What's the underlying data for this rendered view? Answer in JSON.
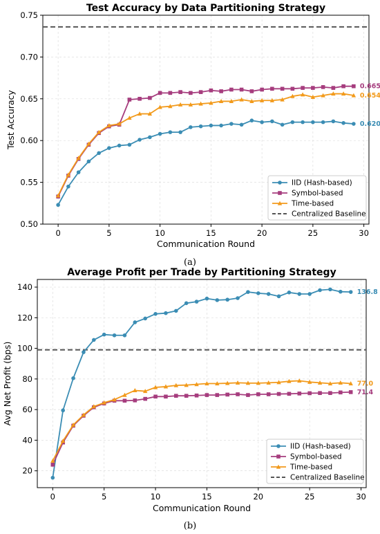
{
  "colors": {
    "iid": "#3b8db4",
    "symbol": "#a63d7e",
    "time": "#f29a1b",
    "baseline": "#555555"
  },
  "chart_data": [
    {
      "type": "line",
      "caption": "(a)",
      "title": "Test Accuracy by Data Partitioning Strategy",
      "xlabel": "Communication Round",
      "ylabel": "Test Accuracy",
      "xlim": [
        -1.5,
        30.5
      ],
      "ylim": [
        0.5,
        0.75
      ],
      "xticks": [
        0,
        5,
        10,
        15,
        20,
        25,
        30
      ],
      "yticks": [
        0.5,
        0.55,
        0.6,
        0.65,
        0.7,
        0.75
      ],
      "ytick_labels": [
        "0.50",
        "0.55",
        "0.60",
        "0.65",
        "0.70",
        "0.75"
      ],
      "grid": true,
      "legend": "lower-right",
      "baseline": {
        "name": "Centralized Baseline",
        "value": 0.736
      },
      "x": [
        0,
        1,
        2,
        3,
        4,
        5,
        6,
        7,
        8,
        9,
        10,
        11,
        12,
        13,
        14,
        15,
        16,
        17,
        18,
        19,
        20,
        21,
        22,
        23,
        24,
        25,
        26,
        27,
        28,
        29
      ],
      "series": [
        {
          "name": "IID (Hash-based)",
          "color_key": "iid",
          "marker": "circle",
          "end_label": "0.620",
          "values": [
            0.523,
            0.545,
            0.562,
            0.575,
            0.585,
            0.591,
            0.594,
            0.595,
            0.601,
            0.604,
            0.608,
            0.61,
            0.61,
            0.616,
            0.617,
            0.618,
            0.618,
            0.62,
            0.619,
            0.624,
            0.622,
            0.623,
            0.619,
            0.622,
            0.622,
            0.622,
            0.622,
            0.623,
            0.621,
            0.62
          ]
        },
        {
          "name": "Symbol-based",
          "color_key": "symbol",
          "marker": "square",
          "end_label": "0.665",
          "values": [
            0.533,
            0.558,
            0.578,
            0.595,
            0.609,
            0.617,
            0.619,
            0.649,
            0.65,
            0.651,
            0.657,
            0.657,
            0.658,
            0.657,
            0.658,
            0.66,
            0.659,
            0.661,
            0.661,
            0.659,
            0.661,
            0.662,
            0.662,
            0.662,
            0.663,
            0.663,
            0.664,
            0.663,
            0.665,
            0.665
          ]
        },
        {
          "name": "Time-based",
          "color_key": "time",
          "marker": "triangle",
          "end_label": "0.654",
          "values": [
            0.534,
            0.559,
            0.579,
            0.596,
            0.61,
            0.618,
            0.62,
            0.627,
            0.632,
            0.632,
            0.64,
            0.641,
            0.643,
            0.643,
            0.644,
            0.645,
            0.647,
            0.647,
            0.649,
            0.647,
            0.648,
            0.648,
            0.649,
            0.653,
            0.655,
            0.652,
            0.654,
            0.656,
            0.656,
            0.654
          ]
        }
      ]
    },
    {
      "type": "line",
      "caption": "(b)",
      "title": "Average Profit per Trade by Partitioning Strategy",
      "xlabel": "Communication Round",
      "ylabel": "Avg Net Profit (bps)",
      "xlim": [
        -1.5,
        30.5
      ],
      "ylim": [
        9,
        145
      ],
      "xticks": [
        0,
        5,
        10,
        15,
        20,
        25,
        30
      ],
      "yticks": [
        20,
        40,
        60,
        80,
        100,
        120,
        140
      ],
      "ytick_labels": [
        "20",
        "40",
        "60",
        "80",
        "100",
        "120",
        "140"
      ],
      "grid": true,
      "legend": "lower-right",
      "baseline": {
        "name": "Centralized Baseline",
        "value": 99
      },
      "x": [
        0,
        1,
        2,
        3,
        4,
        5,
        6,
        7,
        8,
        9,
        10,
        11,
        12,
        13,
        14,
        15,
        16,
        17,
        18,
        19,
        20,
        21,
        22,
        23,
        24,
        25,
        26,
        27,
        28,
        29
      ],
      "series": [
        {
          "name": "IID (Hash-based)",
          "color_key": "iid",
          "marker": "circle",
          "end_label": "136.8",
          "values": [
            15.5,
            59.5,
            80.5,
            97.5,
            105.5,
            109,
            108.5,
            108.5,
            117,
            119.5,
            122.5,
            123,
            124.5,
            129.5,
            130.5,
            132.5,
            131.5,
            131.8,
            132.8,
            136.8,
            136,
            135.5,
            134,
            136.5,
            135.5,
            135.5,
            138,
            138.5,
            137,
            136.8
          ]
        },
        {
          "name": "Symbol-based",
          "color_key": "symbol",
          "marker": "square",
          "end_label": "71.4",
          "values": [
            24,
            38.5,
            49.5,
            56,
            61.5,
            64,
            65.8,
            65.8,
            66,
            67,
            68.5,
            68.5,
            69,
            69,
            69.2,
            69.5,
            69.5,
            69.8,
            70,
            69.5,
            70,
            70,
            70.2,
            70.3,
            70.5,
            70.7,
            70.8,
            70.8,
            71.2,
            71.4
          ]
        },
        {
          "name": "Time-based",
          "color_key": "time",
          "marker": "triangle",
          "end_label": "77.0",
          "values": [
            26.5,
            39.5,
            50,
            56.5,
            62,
            64.5,
            66.5,
            69.5,
            72.5,
            72,
            74.5,
            75,
            75.8,
            76,
            76.5,
            77,
            77,
            77.2,
            77.5,
            77.3,
            77.3,
            77.5,
            77.8,
            78.5,
            78.8,
            78,
            77.5,
            77,
            77.5,
            77
          ]
        }
      ]
    }
  ]
}
